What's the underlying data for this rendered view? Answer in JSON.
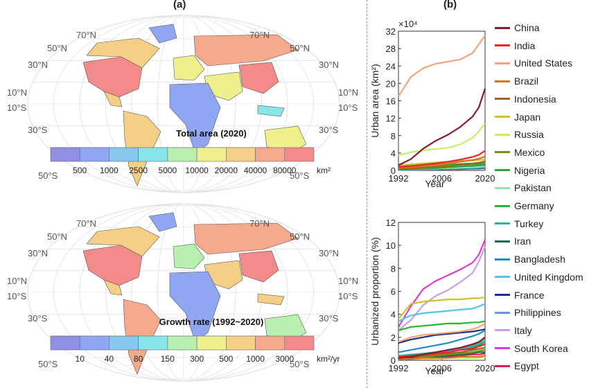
{
  "labels": {
    "panel_a": "(a)",
    "panel_b": "(b)"
  },
  "maps": [
    {
      "title": "Total area (2020)",
      "unit": "km²",
      "colorbar_ticks": [
        "500",
        "1000",
        "2500",
        "5000",
        "10000",
        "20000",
        "40000",
        "80000"
      ],
      "colorbar_colors": [
        "#8f8fe6",
        "#8fa6f2",
        "#86c8f0",
        "#86e6e8",
        "#b8f0b0",
        "#eef08e",
        "#f5cf85",
        "#f7a98b",
        "#f58a8a"
      ],
      "lat_labels_left": [
        "70°N",
        "50°N",
        "30°N",
        "10°N",
        "10°S",
        "30°S",
        "50°S"
      ],
      "lat_labels_right": [
        "70°N",
        "50°N",
        "30°N",
        "10°N",
        "10°S",
        "30°S",
        "50°S"
      ]
    },
    {
      "title": "Growth rate (1992~2020)",
      "unit": "km²/yr",
      "colorbar_ticks": [
        "10",
        "40",
        "80",
        "150",
        "300",
        "500",
        "1000",
        "3000"
      ],
      "colorbar_colors": [
        "#8f8fe6",
        "#8fa6f2",
        "#86c8f0",
        "#86e6e8",
        "#b8f0b0",
        "#eef08e",
        "#f5cf85",
        "#f7a98b",
        "#f58a8a"
      ],
      "lat_labels_left": [
        "70°N",
        "50°N",
        "30°N",
        "10°N",
        "10°S",
        "30°S",
        "50°S"
      ],
      "lat_labels_right": [
        "70°N",
        "50°N",
        "30°N",
        "10°N",
        "10°S",
        "30°S",
        "50°S"
      ]
    }
  ],
  "chart_data": [
    {
      "type": "line",
      "ylabel": "Urban area (km²)",
      "xlabel": "Year",
      "multiplier": "×10⁴",
      "xlim": [
        1992,
        2020
      ],
      "ylim": [
        0,
        32
      ],
      "xticks": [
        "1992",
        "2006",
        "2020"
      ],
      "yticks": [
        "0",
        "4",
        "8",
        "12",
        "16",
        "20",
        "24",
        "28",
        "32"
      ],
      "x": [
        1992,
        1996,
        2000,
        2004,
        2008,
        2012,
        2016,
        2018,
        2020
      ],
      "series": [
        {
          "name": "China",
          "values": [
            1.2,
            2.6,
            5.0,
            6.8,
            8.2,
            10.0,
            12.4,
            14.5,
            18.8
          ]
        },
        {
          "name": "India",
          "values": [
            0.8,
            1.0,
            1.3,
            1.6,
            2.0,
            2.5,
            3.1,
            3.6,
            4.5
          ]
        },
        {
          "name": "United States",
          "values": [
            17.0,
            21.5,
            23.5,
            24.5,
            25.0,
            25.5,
            27.0,
            29.0,
            31.0
          ]
        },
        {
          "name": "Brazil",
          "values": [
            0.6,
            0.8,
            1.0,
            1.3,
            1.6,
            2.0,
            2.4,
            2.7,
            3.2
          ]
        },
        {
          "name": "Indonesia",
          "values": [
            0.3,
            0.4,
            0.6,
            0.8,
            1.0,
            1.3,
            1.6,
            1.8,
            2.1
          ]
        },
        {
          "name": "Japan",
          "values": [
            1.2,
            1.4,
            1.6,
            1.8,
            2.0,
            2.2,
            2.3,
            2.4,
            2.5
          ]
        },
        {
          "name": "Russia",
          "values": [
            3.5,
            4.2,
            4.6,
            4.9,
            5.2,
            6.0,
            7.5,
            9.0,
            10.8
          ]
        },
        {
          "name": "Mexico",
          "values": [
            0.4,
            0.5,
            0.7,
            0.9,
            1.1,
            1.3,
            1.5,
            1.7,
            1.9
          ]
        },
        {
          "name": "Nigeria",
          "values": [
            0.2,
            0.3,
            0.4,
            0.5,
            0.7,
            0.9,
            1.1,
            1.3,
            1.5
          ]
        },
        {
          "name": "Pakistan",
          "values": [
            0.2,
            0.3,
            0.3,
            0.4,
            0.5,
            0.6,
            0.7,
            0.8,
            0.9
          ]
        },
        {
          "name": "Germany",
          "values": [
            1.0,
            1.1,
            1.2,
            1.3,
            1.4,
            1.5,
            1.6,
            1.7,
            1.8
          ]
        },
        {
          "name": "Turkey",
          "values": [
            0.3,
            0.4,
            0.5,
            0.6,
            0.7,
            0.9,
            1.1,
            1.2,
            1.4
          ]
        },
        {
          "name": "Iran",
          "values": [
            0.3,
            0.4,
            0.5,
            0.6,
            0.7,
            0.8,
            1.0,
            1.1,
            1.2
          ]
        },
        {
          "name": "Bangladesh",
          "values": [
            0.1,
            0.1,
            0.2,
            0.2,
            0.3,
            0.4,
            0.5,
            0.5,
            0.6
          ]
        },
        {
          "name": "United Kingdom",
          "values": [
            0.8,
            0.9,
            1.0,
            1.0,
            1.1,
            1.1,
            1.2,
            1.2,
            1.3
          ]
        },
        {
          "name": "France",
          "values": [
            0.9,
            1.0,
            1.1,
            1.2,
            1.3,
            1.4,
            1.5,
            1.5,
            1.6
          ]
        },
        {
          "name": "Philippines",
          "values": [
            0.1,
            0.2,
            0.2,
            0.3,
            0.3,
            0.4,
            0.5,
            0.6,
            0.7
          ]
        },
        {
          "name": "Italy",
          "values": [
            0.8,
            0.9,
            1.0,
            1.1,
            1.2,
            1.3,
            1.4,
            1.5,
            1.6
          ]
        },
        {
          "name": "South Korea",
          "values": [
            0.2,
            0.3,
            0.4,
            0.5,
            0.6,
            0.7,
            0.8,
            0.9,
            1.0
          ]
        },
        {
          "name": "Egypt",
          "values": [
            0.1,
            0.1,
            0.2,
            0.2,
            0.3,
            0.3,
            0.4,
            0.4,
            0.5
          ]
        }
      ]
    },
    {
      "type": "line",
      "ylabel": "Urbanized proportion (%)",
      "xlabel": "Year",
      "xlim": [
        1992,
        2020
      ],
      "ylim": [
        0,
        12
      ],
      "xticks": [
        "1992",
        "2006",
        "2020"
      ],
      "yticks": [
        "0",
        "2",
        "4",
        "6",
        "8",
        "10",
        "12"
      ],
      "x": [
        1992,
        1996,
        2000,
        2004,
        2008,
        2012,
        2016,
        2018,
        2020
      ],
      "series": [
        {
          "name": "China",
          "values": [
            0.2,
            0.3,
            0.5,
            0.7,
            0.9,
            1.1,
            1.4,
            1.6,
            2.0
          ]
        },
        {
          "name": "India",
          "values": [
            0.3,
            0.4,
            0.5,
            0.6,
            0.7,
            0.9,
            1.0,
            1.2,
            1.4
          ]
        },
        {
          "name": "United States",
          "values": [
            1.6,
            2.0,
            2.2,
            2.3,
            2.4,
            2.5,
            2.7,
            2.9,
            3.2
          ]
        },
        {
          "name": "Brazil",
          "values": [
            0.1,
            0.1,
            0.2,
            0.2,
            0.2,
            0.3,
            0.3,
            0.3,
            0.4
          ]
        },
        {
          "name": "Indonesia",
          "values": [
            0.2,
            0.3,
            0.4,
            0.5,
            0.6,
            0.7,
            0.9,
            1.0,
            1.1
          ]
        },
        {
          "name": "Japan",
          "values": [
            3.6,
            4.9,
            5.1,
            5.2,
            5.3,
            5.3,
            5.4,
            5.4,
            5.5
          ]
        },
        {
          "name": "Russia",
          "values": [
            0.1,
            0.1,
            0.1,
            0.1,
            0.2,
            0.2,
            0.2,
            0.2,
            0.3
          ]
        },
        {
          "name": "Mexico",
          "values": [
            0.2,
            0.3,
            0.3,
            0.4,
            0.5,
            0.6,
            0.7,
            0.8,
            0.9
          ]
        },
        {
          "name": "Nigeria",
          "values": [
            0.2,
            0.3,
            0.4,
            0.5,
            0.7,
            0.9,
            1.1,
            1.3,
            1.6
          ]
        },
        {
          "name": "Pakistan",
          "values": [
            0.3,
            0.3,
            0.4,
            0.5,
            0.6,
            0.7,
            0.8,
            0.9,
            1.0
          ]
        },
        {
          "name": "Germany",
          "values": [
            2.6,
            2.9,
            3.0,
            3.1,
            3.2,
            3.2,
            3.3,
            3.3,
            3.4
          ]
        },
        {
          "name": "Turkey",
          "values": [
            0.4,
            0.5,
            0.6,
            0.7,
            0.9,
            1.1,
            1.3,
            1.5,
            1.8
          ]
        },
        {
          "name": "Iran",
          "values": [
            0.2,
            0.2,
            0.3,
            0.3,
            0.4,
            0.5,
            0.6,
            0.7,
            0.7
          ]
        },
        {
          "name": "Bangladesh",
          "values": [
            0.7,
            0.9,
            1.1,
            1.3,
            1.5,
            1.8,
            2.1,
            2.3,
            2.6
          ]
        },
        {
          "name": "United Kingdom",
          "values": [
            3.4,
            3.9,
            4.1,
            4.2,
            4.3,
            4.4,
            4.5,
            4.7,
            4.9
          ]
        },
        {
          "name": "France",
          "values": [
            1.5,
            1.8,
            2.0,
            2.2,
            2.3,
            2.4,
            2.5,
            2.6,
            2.7
          ]
        },
        {
          "name": "Philippines",
          "values": [
            0.3,
            0.4,
            0.5,
            0.7,
            0.8,
            1.0,
            1.2,
            1.4,
            1.6
          ]
        },
        {
          "name": "Italy",
          "values": [
            2.6,
            3.5,
            4.8,
            5.6,
            6.1,
            6.8,
            7.6,
            8.6,
            9.9
          ]
        },
        {
          "name": "South Korea",
          "values": [
            2.9,
            4.7,
            6.2,
            6.9,
            7.4,
            7.9,
            8.5,
            9.2,
            10.5
          ]
        },
        {
          "name": "Egypt",
          "values": [
            0.1,
            0.2,
            0.2,
            0.3,
            0.3,
            0.4,
            0.5,
            0.5,
            0.6
          ]
        }
      ]
    }
  ],
  "legend": [
    {
      "name": "China",
      "color": "#8b1a2b"
    },
    {
      "name": "India",
      "color": "#e8262b"
    },
    {
      "name": "United States",
      "color": "#f5a37a"
    },
    {
      "name": "Brazil",
      "color": "#d9731f"
    },
    {
      "name": "Indonesia",
      "color": "#a0651c"
    },
    {
      "name": "Japan",
      "color": "#c9c22a"
    },
    {
      "name": "Russia",
      "color": "#c8ee6e"
    },
    {
      "name": "Mexico",
      "color": "#7a8c22"
    },
    {
      "name": "Nigeria",
      "color": "#2fa73a"
    },
    {
      "name": "Pakistan",
      "color": "#8ee8a8"
    },
    {
      "name": "Germany",
      "color": "#2ab52a"
    },
    {
      "name": "Turkey",
      "color": "#22b8a0"
    },
    {
      "name": "Iran",
      "color": "#1a6b52"
    },
    {
      "name": "Bangladesh",
      "color": "#1e8ac4"
    },
    {
      "name": "United Kingdom",
      "color": "#52c2ee"
    },
    {
      "name": "France",
      "color": "#1a2f8c"
    },
    {
      "name": "Philippines",
      "color": "#6b95e0"
    },
    {
      "name": "Italy",
      "color": "#c7a0e8"
    },
    {
      "name": "South Korea",
      "color": "#e03ad0"
    },
    {
      "name": "Egypt",
      "color": "#e01a5a"
    }
  ]
}
